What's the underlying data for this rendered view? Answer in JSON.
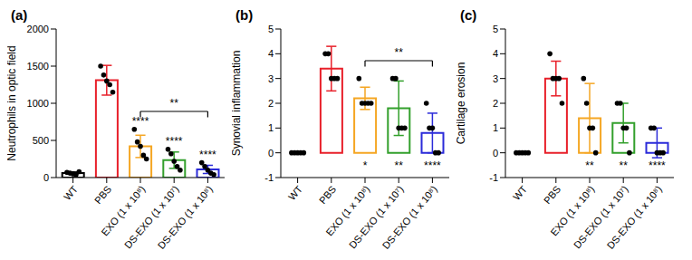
{
  "chart_data": [
    {
      "type": "bar",
      "title": "(a)",
      "y_label": "Neutrophils in optic field",
      "categories": [
        "WT",
        "PBS",
        "EXO (1 x 10⁸)",
        "DS-EXO (1 x 10⁷)",
        "DS-EXO (1 x 10⁸)"
      ],
      "values": [
        60,
        1310,
        420,
        234,
        110
      ],
      "error": [
        15,
        200,
        150,
        110,
        55
      ],
      "points": [
        [
          70,
          60,
          50,
          40,
          80
        ],
        [
          1500,
          1380,
          1300,
          1250,
          1150
        ],
        [
          650,
          480,
          420,
          300,
          250
        ],
        [
          380,
          320,
          220,
          150,
          100
        ],
        [
          200,
          150,
          100,
          60,
          40
        ]
      ],
      "colors": [
        "#000000",
        "#e8202a",
        "#f5a623",
        "#33a02c",
        "#2b2bd9"
      ],
      "ylim": [
        0,
        2000
      ],
      "yticks": [
        0,
        500,
        1000,
        1500,
        2000
      ],
      "significance": [
        null,
        null,
        "****",
        "****",
        "****"
      ],
      "bracket": {
        "from": "EXO (1 x 10⁸)",
        "to": "DS-EXO (1 x 10⁸)",
        "label": "**"
      }
    },
    {
      "type": "bar",
      "title": "(b)",
      "y_label": "Synovial inflammation",
      "categories": [
        "WT",
        "PBS",
        "EXO (1 x 10⁸)",
        "DS-EXO (1 x 10⁷)",
        "DS-EXO (1 x 10⁸)"
      ],
      "values": [
        0,
        3.4,
        2.2,
        1.8,
        0.8
      ],
      "error": [
        0,
        0.9,
        0.45,
        1.1,
        0.8
      ],
      "points": [
        [
          0,
          0,
          0,
          0,
          0
        ],
        [
          4,
          4,
          3,
          3,
          3
        ],
        [
          3,
          2,
          2,
          2,
          2
        ],
        [
          3,
          3,
          1,
          1,
          1
        ],
        [
          2,
          1,
          1,
          0,
          0
        ]
      ],
      "colors": [
        "#000000",
        "#e8202a",
        "#f5a623",
        "#33a02c",
        "#2b2bd9"
      ],
      "ylim": [
        -1,
        5
      ],
      "yticks": [
        -1,
        0,
        1,
        2,
        3,
        4,
        5
      ],
      "significance": [
        null,
        null,
        "*",
        "**",
        "****"
      ],
      "bracket": {
        "from": "EXO (1 x 10⁸)",
        "to": "DS-EXO (1 x 10⁸)",
        "label": "**"
      }
    },
    {
      "type": "bar",
      "title": "(c)",
      "y_label": "Cartilage erosion",
      "categories": [
        "WT",
        "PBS",
        "EXO (1 x 10⁸)",
        "DS-EXO (1 x 10⁷)",
        "DS-EXO (1 x 10⁸)"
      ],
      "values": [
        0,
        3.0,
        1.4,
        1.2,
        0.4
      ],
      "error": [
        0,
        0.7,
        1.4,
        0.8,
        0.6
      ],
      "points": [
        [
          0,
          0,
          0,
          0,
          0
        ],
        [
          4,
          3,
          3,
          3,
          2
        ],
        [
          3,
          2,
          1,
          1,
          0
        ],
        [
          2,
          2,
          1,
          1,
          0
        ],
        [
          1,
          1,
          0,
          0,
          0
        ]
      ],
      "colors": [
        "#000000",
        "#e8202a",
        "#f5a623",
        "#33a02c",
        "#2b2bd9"
      ],
      "ylim": [
        -1,
        5
      ],
      "yticks": [
        -1,
        0,
        1,
        2,
        3,
        4,
        5
      ],
      "significance": [
        null,
        null,
        "**",
        "**",
        "****"
      ]
    }
  ]
}
